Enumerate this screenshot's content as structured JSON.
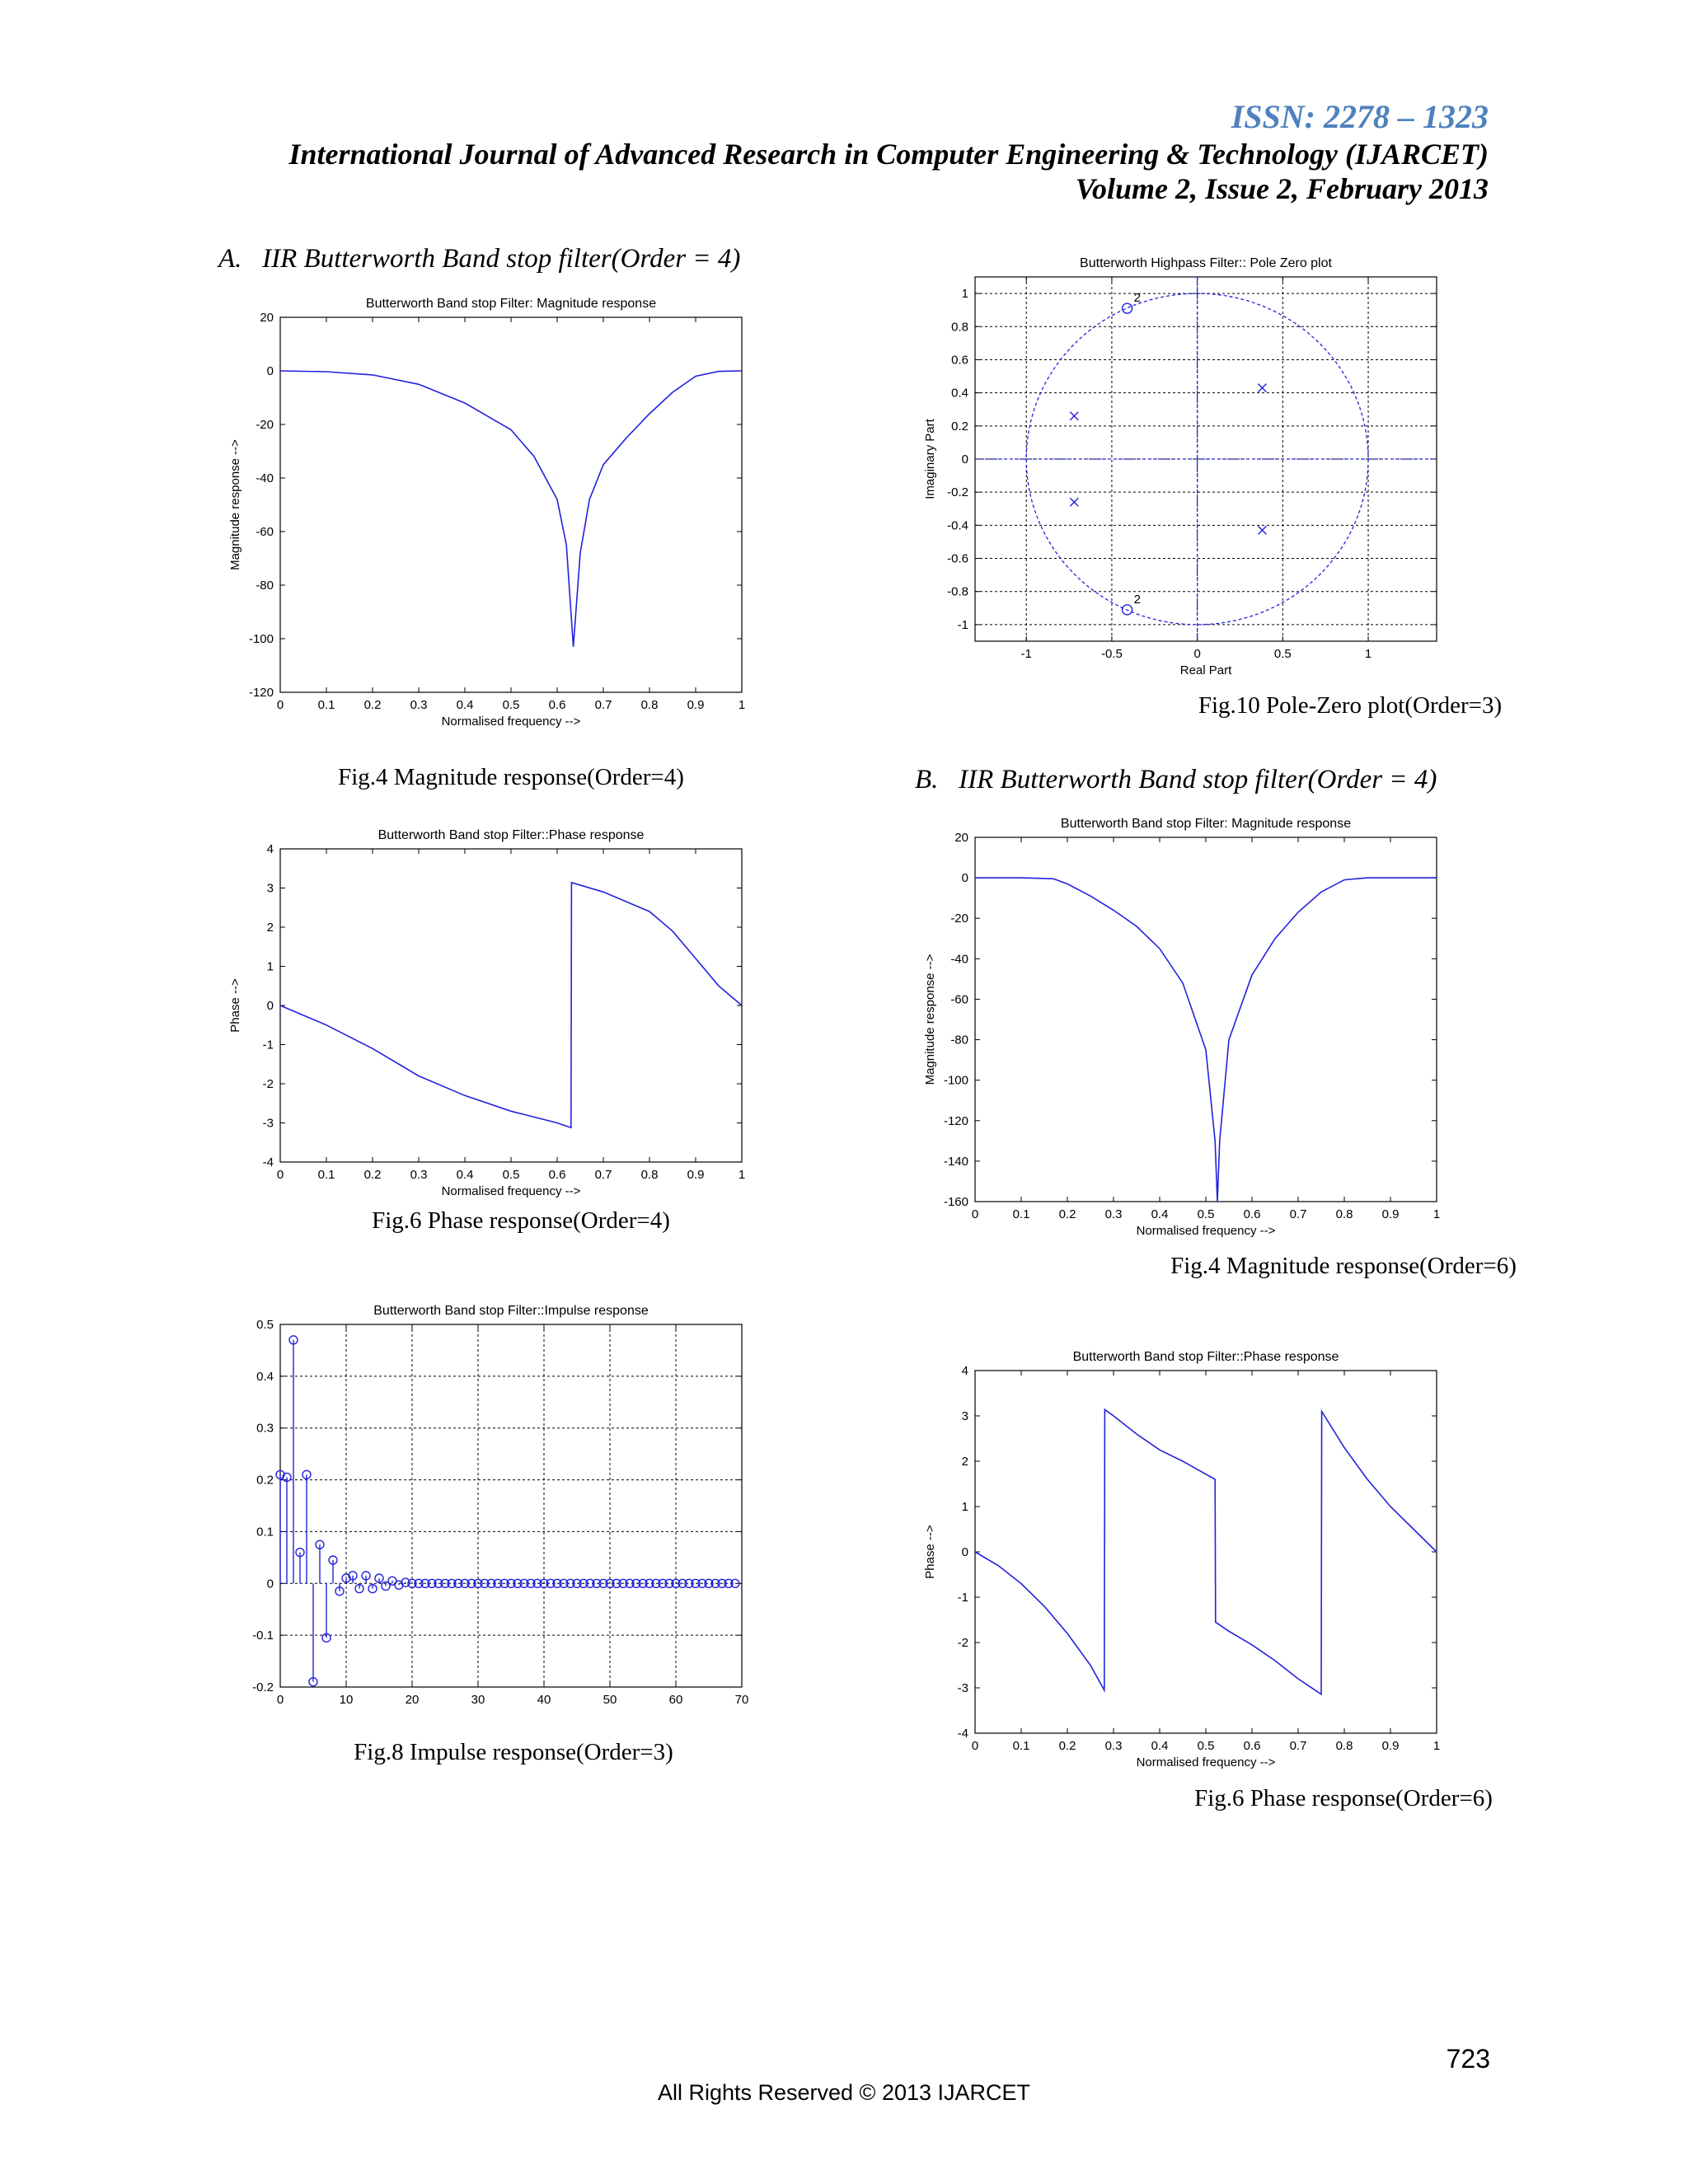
{
  "header": {
    "issn": "ISSN: 2278 – 1323",
    "journal": "International Journal of Advanced Research in Computer Engineering & Technology (IJARCET)",
    "volume": "Volume 2, Issue 2, February 2013"
  },
  "sections": {
    "a": "A.   IIR Butterworth Band stop filter(Order = 4)",
    "b": "B.   IIR Butterworth Band stop filter(Order = 4)"
  },
  "captions": {
    "fig4a": "Fig.4 Magnitude response(Order=4)",
    "fig6a": "Fig.6 Phase response(Order=4)",
    "fig8": "Fig.8 Impulse response(Order=3)",
    "fig10": "Fig.10 Pole-Zero plot(Order=3)",
    "fig4b": "Fig.4 Magnitude response(Order=6)",
    "fig6b": "Fig.6 Phase response(Order=6)"
  },
  "footer": {
    "page_number": "723",
    "rights": "All Rights Reserved © 2013 IJARCET"
  },
  "colors": {
    "series": "#2222dd",
    "grid": "#000000",
    "heading": "#4f81bd"
  },
  "chart_data": [
    {
      "id": "mag4",
      "type": "line",
      "title": "Butterworth Band stop Filter: Magnitude response",
      "xlabel": "Normalised frequency -->",
      "ylabel": "Magnitude response -->",
      "xlim": [
        0,
        1
      ],
      "ylim": [
        -120,
        20
      ],
      "grid": false,
      "xticks": [
        0,
        0.1,
        0.2,
        0.3,
        0.4,
        0.5,
        0.6,
        0.7,
        0.8,
        0.9,
        1
      ],
      "yticks": [
        20,
        0,
        -20,
        -40,
        -60,
        -80,
        -100,
        -120
      ],
      "series": [
        {
          "x": [
            0,
            0.1,
            0.2,
            0.3,
            0.4,
            0.5,
            0.55,
            0.6,
            0.62,
            0.635,
            0.65,
            0.67,
            0.7,
            0.75,
            0.8,
            0.85,
            0.9,
            0.95,
            1
          ],
          "y": [
            0,
            -0.3,
            -1.5,
            -5,
            -12,
            -22,
            -32,
            -48,
            -65,
            -103,
            -68,
            -48,
            -35,
            -25,
            -16,
            -8,
            -2,
            -0.2,
            0
          ]
        }
      ]
    },
    {
      "id": "phase4",
      "type": "line",
      "title": "Butterworth Band stop Filter::Phase response",
      "xlabel": "Normalised frequency -->",
      "ylabel": "Phase -->",
      "xlim": [
        0,
        1
      ],
      "ylim": [
        -4,
        4
      ],
      "grid": false,
      "xticks": [
        0,
        0.1,
        0.2,
        0.3,
        0.4,
        0.5,
        0.6,
        0.7,
        0.8,
        0.9,
        1
      ],
      "yticks": [
        4,
        3,
        2,
        1,
        0,
        -1,
        -2,
        -3,
        -4
      ],
      "series": [
        {
          "x": [
            0,
            0.1,
            0.2,
            0.3,
            0.4,
            0.5,
            0.6,
            0.63,
            0.631,
            0.7,
            0.8,
            0.85,
            0.9,
            0.95,
            1
          ],
          "y": [
            0,
            -0.5,
            -1.1,
            -1.8,
            -2.3,
            -2.7,
            -3.0,
            -3.12,
            3.14,
            2.9,
            2.4,
            1.9,
            1.2,
            0.5,
            0
          ]
        }
      ]
    },
    {
      "id": "impulse3",
      "type": "stem",
      "title": "Butterworth Band stop Filter::Impulse response",
      "xlim": [
        0,
        70
      ],
      "ylim": [
        -0.2,
        0.5
      ],
      "grid": true,
      "xticks": [
        0,
        10,
        20,
        30,
        40,
        50,
        60,
        70
      ],
      "yticks": [
        0.5,
        0.4,
        0.3,
        0.2,
        0.1,
        0,
        -0.1,
        -0.2
      ],
      "values": [
        0.21,
        0.205,
        0.47,
        0.06,
        0.21,
        -0.19,
        0.075,
        -0.105,
        0.045,
        -0.015,
        0.01,
        0.015,
        -0.01,
        0.015,
        -0.01,
        0.01,
        -0.005,
        0.005,
        -0.003,
        0.002,
        0,
        0,
        0,
        0,
        0,
        0,
        0,
        0,
        0,
        0,
        0,
        0,
        0,
        0,
        0,
        0,
        0,
        0,
        0,
        0,
        0,
        0,
        0,
        0,
        0,
        0,
        0,
        0,
        0,
        0,
        0,
        0,
        0,
        0,
        0,
        0,
        0,
        0,
        0,
        0,
        0,
        0,
        0,
        0,
        0,
        0,
        0,
        0,
        0,
        0
      ]
    },
    {
      "id": "polezero3",
      "type": "scatter",
      "title": "Butterworth Highpass Filter:: Pole Zero plot",
      "xlabel": "Real Part",
      "ylabel": "Imaginary Part",
      "xlim": [
        -1.3,
        1.4
      ],
      "ylim": [
        -1.1,
        1.1
      ],
      "grid": true,
      "xticks": [
        -1,
        -0.5,
        0,
        0.5,
        1
      ],
      "yticks": [
        1,
        0.8,
        0.6,
        0.4,
        0.2,
        0,
        -0.2,
        -0.4,
        -0.6,
        -0.8,
        -1
      ],
      "zeros": [
        {
          "x": -0.41,
          "y": 0.91,
          "label": "2"
        },
        {
          "x": -0.41,
          "y": -0.91,
          "label": "2"
        }
      ],
      "poles": [
        {
          "x": -0.72,
          "y": 0.26
        },
        {
          "x": -0.72,
          "y": -0.26
        },
        {
          "x": 0.38,
          "y": 0.43
        },
        {
          "x": 0.38,
          "y": -0.43
        }
      ]
    },
    {
      "id": "mag6",
      "type": "line",
      "title": "Butterworth Band stop Filter: Magnitude response",
      "xlabel": "Normalised frequency -->",
      "ylabel": "Magnitude response -->",
      "xlim": [
        0,
        1
      ],
      "ylim": [
        -160,
        20
      ],
      "grid": false,
      "xticks": [
        0,
        0.1,
        0.2,
        0.3,
        0.4,
        0.5,
        0.6,
        0.7,
        0.8,
        0.9,
        1
      ],
      "yticks": [
        20,
        0,
        -20,
        -40,
        -60,
        -80,
        -100,
        -120,
        -140,
        -160
      ],
      "series": [
        {
          "x": [
            0,
            0.1,
            0.17,
            0.2,
            0.25,
            0.3,
            0.35,
            0.4,
            0.45,
            0.5,
            0.52,
            0.525,
            0.53,
            0.55,
            0.6,
            0.65,
            0.7,
            0.75,
            0.8,
            0.85,
            1
          ],
          "y": [
            0,
            0,
            -0.5,
            -3,
            -9,
            -16,
            -24,
            -35,
            -52,
            -85,
            -130,
            -160,
            -130,
            -80,
            -48,
            -30,
            -17,
            -7,
            -1,
            0,
            0
          ]
        }
      ]
    },
    {
      "id": "phase6",
      "type": "line",
      "title": "Butterworth Band stop Filter::Phase response",
      "xlabel": "Normalised frequency -->",
      "ylabel": "Phase -->",
      "xlim": [
        0,
        1
      ],
      "ylim": [
        -4,
        4
      ],
      "grid": false,
      "xticks": [
        0,
        0.1,
        0.2,
        0.3,
        0.4,
        0.5,
        0.6,
        0.7,
        0.8,
        0.9,
        1
      ],
      "yticks": [
        4,
        3,
        2,
        1,
        0,
        -1,
        -2,
        -3,
        -4
      ],
      "series": [
        {
          "x": [
            0,
            0.05,
            0.1,
            0.15,
            0.2,
            0.25,
            0.28,
            0.281,
            0.3,
            0.35,
            0.4,
            0.45,
            0.52,
            0.521,
            0.55,
            0.6,
            0.65,
            0.7,
            0.75,
            0.751,
            0.8,
            0.85,
            0.9,
            0.95,
            1
          ],
          "y": [
            0,
            -0.3,
            -0.7,
            -1.2,
            -1.8,
            -2.5,
            -3.05,
            3.14,
            3.0,
            2.6,
            2.25,
            2.0,
            1.6,
            -1.55,
            -1.75,
            -2.05,
            -2.4,
            -2.8,
            -3.14,
            3.1,
            2.3,
            1.6,
            1.0,
            0.5,
            0
          ]
        }
      ]
    }
  ]
}
